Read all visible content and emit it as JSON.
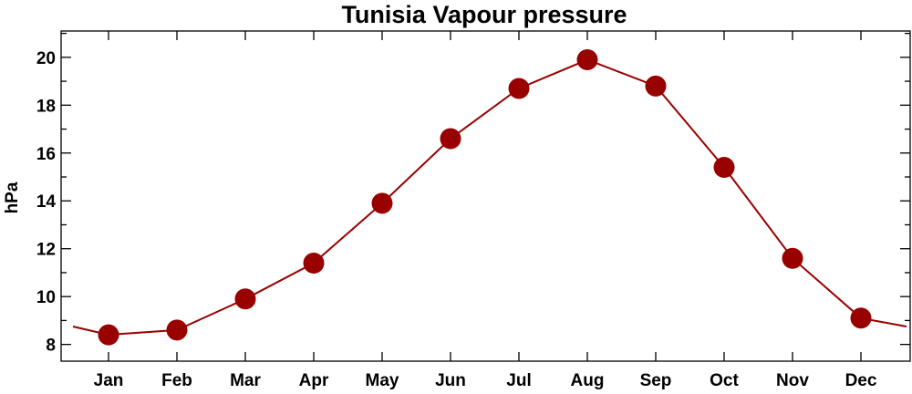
{
  "chart_data": {
    "type": "line",
    "title": "Tunisia Vapour pressure",
    "xlabel": "",
    "ylabel": "hPa",
    "categories": [
      "Jan",
      "Feb",
      "Mar",
      "Apr",
      "May",
      "Jun",
      "Jul",
      "Aug",
      "Sep",
      "Oct",
      "Nov",
      "Dec"
    ],
    "series": [
      {
        "values": [
          8.4,
          8.6,
          9.9,
          11.4,
          13.9,
          16.6,
          18.7,
          19.9,
          18.8,
          15.4,
          11.6,
          9.1
        ],
        "color": "#990000"
      }
    ],
    "edge_values": {
      "before_jan": 8.75,
      "after_dec": 8.75
    },
    "ylim": [
      7.3,
      21.1
    ],
    "yticks": [
      8,
      10,
      12,
      14,
      16,
      18,
      20
    ],
    "yticks_minor": [
      9,
      11,
      13,
      15,
      17,
      19,
      21
    ],
    "grid": false,
    "legend": "none",
    "colors": {
      "line": "#990000",
      "marker": "#990000",
      "axis": "#000000",
      "background": "#ffffff"
    }
  }
}
